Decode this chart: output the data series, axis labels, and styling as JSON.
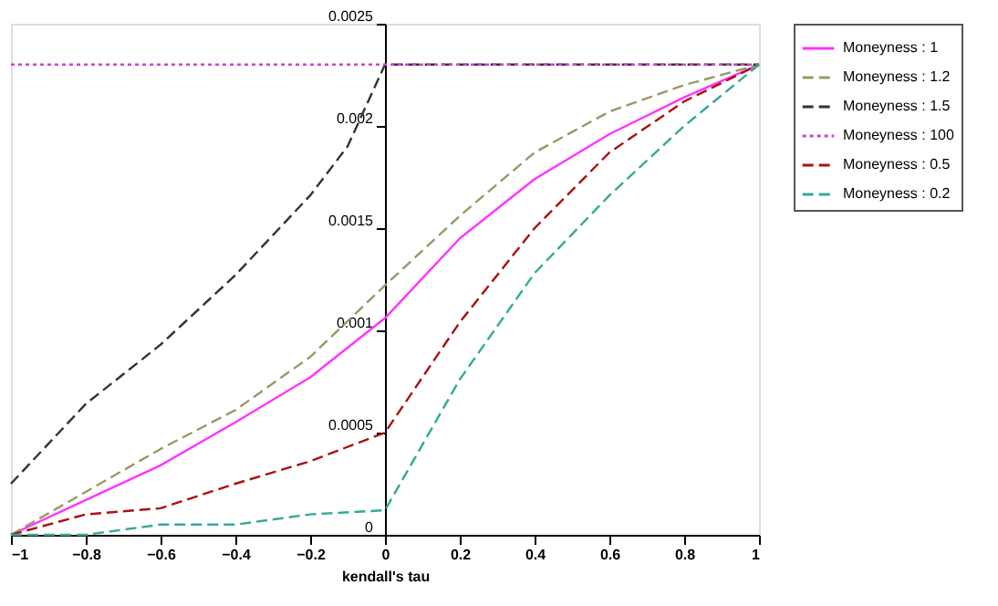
{
  "chart_data": {
    "type": "line",
    "xlabel": "kendall's tau",
    "x": [
      -1,
      -0.8,
      -0.6,
      -0.4,
      -0.2,
      0,
      0.2,
      0.4,
      0.6,
      0.8,
      1
    ],
    "xlim": [
      -1,
      1
    ],
    "xticks": [
      -1,
      -0.8,
      -0.6,
      -0.4,
      -0.2,
      0,
      0.2,
      0.4,
      0.6,
      0.8,
      1
    ],
    "ylim": [
      0,
      0.0025
    ],
    "yticks": [
      0,
      0.0005,
      0.001,
      0.0015,
      0.002,
      0.0025
    ],
    "grid": false,
    "legend": "right",
    "marker": "none",
    "series": [
      {
        "name": "Moneyness : 1",
        "color": "#ff33ff",
        "line_style": "solid",
        "values": [
          0,
          0.00017,
          0.00034,
          0.00055,
          0.00077,
          0.00106,
          0.00145,
          0.00174,
          0.00196,
          0.00214,
          0.0023
        ]
      },
      {
        "name": "Moneyness : 1.2",
        "color": "#999966",
        "line_style": "dashed",
        "values": [
          0,
          0.00021,
          0.00042,
          0.00061,
          0.00087,
          0.00122,
          0.00156,
          0.00187,
          0.00207,
          0.0022,
          0.0023
        ]
      },
      {
        "name": "Moneyness : 1.5",
        "color": "#333333",
        "line_style": "dashed",
        "x": [
          -1,
          -0.8,
          -0.6,
          -0.4,
          -0.2,
          -0.1,
          0,
          0.2,
          0.4,
          0.6,
          0.8,
          1
        ],
        "values": [
          0.00025,
          0.00064,
          0.00093,
          0.00127,
          0.00166,
          0.0019,
          0.0023,
          0.0023,
          0.0023,
          0.0023,
          0.0023,
          0.0023
        ]
      },
      {
        "name": "Moneyness : 100",
        "color": "#cc44cc",
        "line_style": "dotted",
        "values": [
          0.0023,
          0.0023,
          0.0023,
          0.0023,
          0.0023,
          0.0023,
          0.0023,
          0.0023,
          0.0023,
          0.0023,
          0.0023
        ]
      },
      {
        "name": "Moneyness : 0.5",
        "color": "#aa1111",
        "line_style": "dashed",
        "values": [
          0,
          0.0001,
          0.00013,
          0.00025,
          0.00036,
          0.0005,
          0.00104,
          0.0015,
          0.00187,
          0.00212,
          0.0023
        ]
      },
      {
        "name": "Moneyness : 0.2",
        "color": "#33aa99",
        "line_style": "dashed",
        "values": [
          0,
          0,
          5e-05,
          5e-05,
          0.0001,
          0.00012,
          0.00076,
          0.00128,
          0.00166,
          0.002,
          0.0023
        ]
      }
    ]
  }
}
